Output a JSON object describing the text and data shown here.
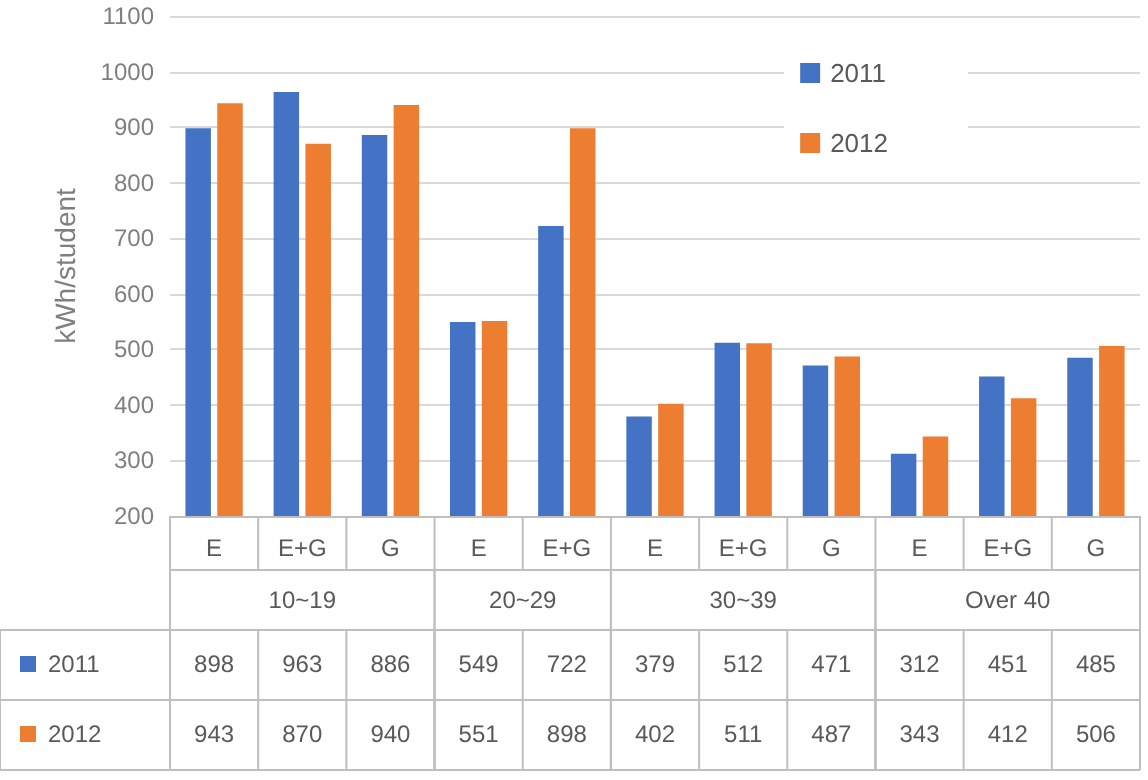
{
  "chart_data": {
    "type": "bar",
    "ylabel": "kWh/student",
    "categories": [
      "E",
      "E+G",
      "G",
      "E",
      "E+G",
      "E",
      "E+G",
      "G",
      "E",
      "E+G",
      "G"
    ],
    "annotations": [
      "10~19",
      "20~29",
      "30~39",
      "Over 40"
    ],
    "series": [
      {
        "name": "2011",
        "color": "#4472c4",
        "values": [
          898,
          963,
          886,
          549,
          722,
          379,
          512,
          471,
          312,
          451,
          485
        ]
      },
      {
        "name": "2012",
        "color": "#ed7d31",
        "values": [
          943,
          870,
          940,
          551,
          898,
          402,
          511,
          487,
          343,
          412,
          506
        ]
      }
    ],
    "ylim": [
      200,
      1100
    ],
    "yticks": [
      200,
      300,
      400,
      500,
      600,
      700,
      800,
      900,
      1000,
      1100
    ],
    "grid": "y",
    "legend": "top right",
    "data_labels": true
  }
}
